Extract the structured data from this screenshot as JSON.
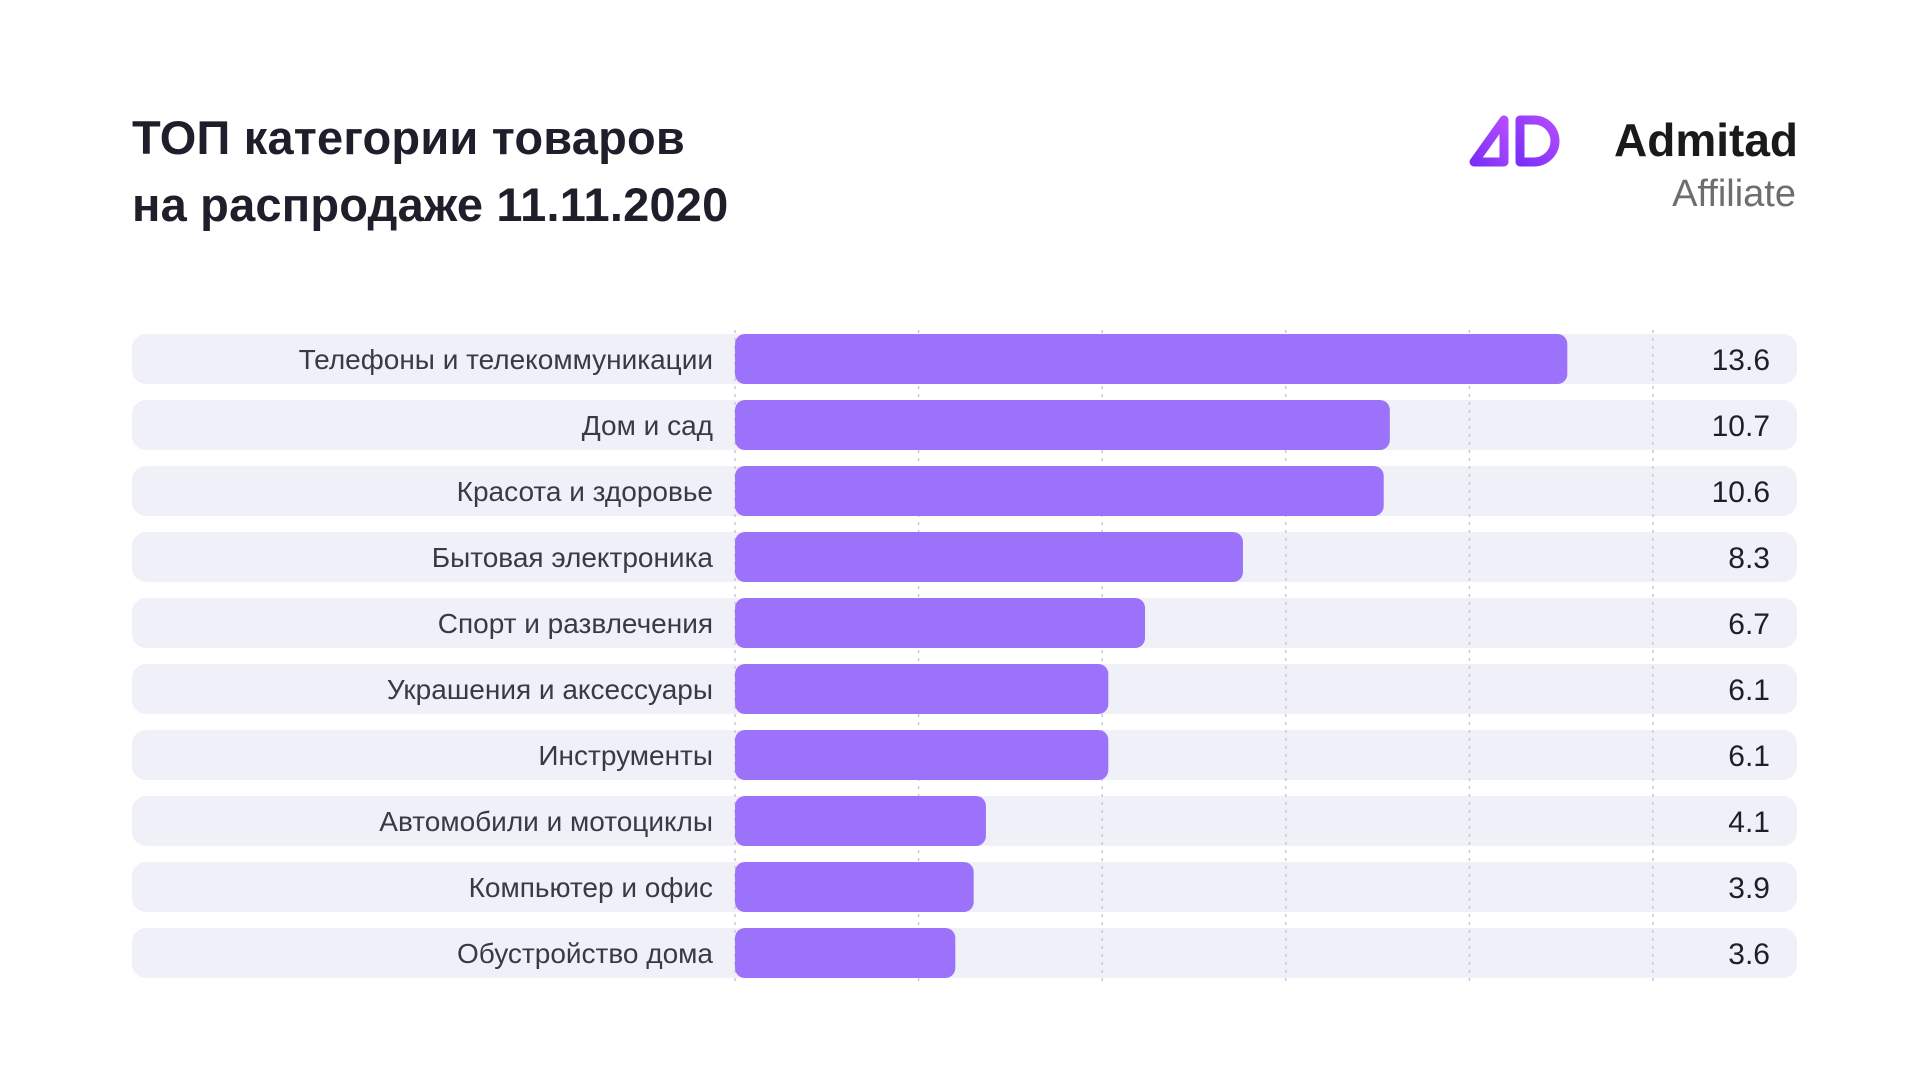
{
  "header": {
    "title_line1": "ТОП категории товаров",
    "title_line2": "на распродаже 11.11.2020"
  },
  "logo": {
    "name": "Admitad",
    "sub": "Affiliate",
    "mark_color_start": "#7b2ff7",
    "mark_color_end": "#b44cff"
  },
  "colors": {
    "bar": "#9c72fb",
    "row_background": "#f0f0f8",
    "grid": "#c9c9d6"
  },
  "chart_data": {
    "type": "bar",
    "orientation": "horizontal",
    "categories": [
      "Телефоны и телекоммуникации",
      "Дом и сад",
      "Красота и здоровье",
      "Бытовая электроника",
      "Спорт и развлечения",
      "Украшения и аксессуары",
      "Инструменты",
      "Автомобили и мотоциклы",
      "Компьютер и офис",
      "Обустройство дома"
    ],
    "values": [
      13.6,
      10.7,
      10.6,
      8.3,
      6.7,
      6.1,
      6.1,
      4.1,
      3.9,
      3.6
    ],
    "value_labels": [
      "13.6",
      "10.7",
      "10.6",
      "8.3",
      "6.7",
      "6.1",
      "6.1",
      "4.1",
      "3.9",
      "3.6"
    ],
    "xlim": [
      0,
      15
    ],
    "grid_step": 3,
    "grid": true,
    "legend": "none"
  }
}
